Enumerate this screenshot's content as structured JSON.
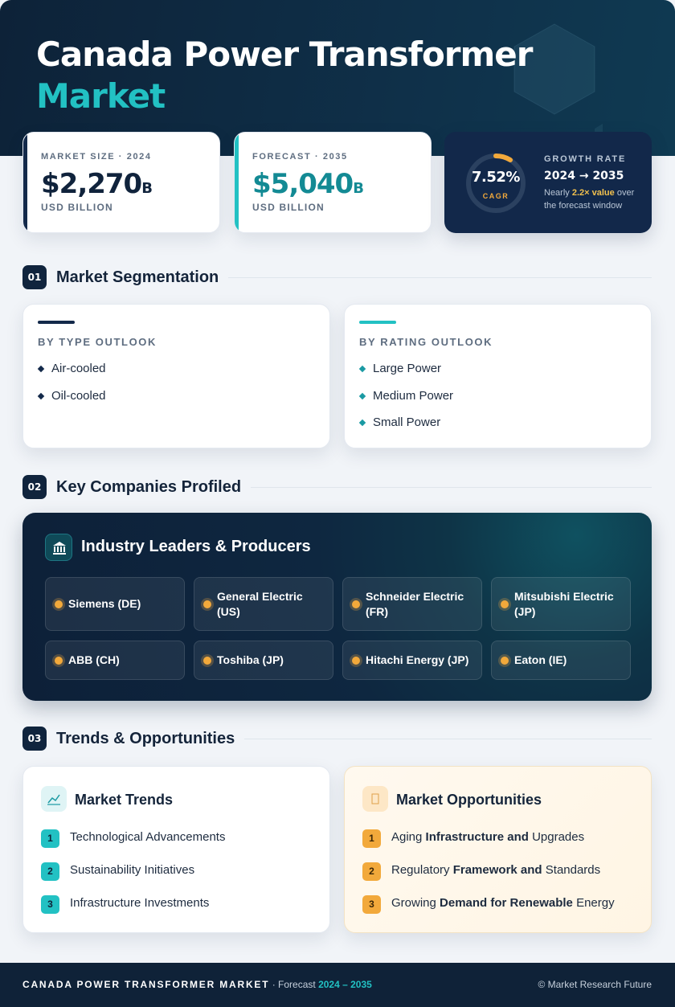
{
  "header": {
    "title": "Canada Power Transformer",
    "title_highlight": "Market"
  },
  "stats": [
    {
      "label": "MARKET SIZE · 2024",
      "value": "$2,270",
      "unit": "B",
      "caption": "USD BILLION"
    },
    {
      "label": "FORECAST · 2035",
      "value": "$5,040",
      "unit": "B",
      "caption": "USD BILLION"
    }
  ],
  "growth": {
    "cagr": "7.52%",
    "cagr_label": "CAGR",
    "label": "GROWTH RATE",
    "period": "2024 → 2035",
    "note": [
      "Nearly",
      "2.2× value",
      "over the forecast window"
    ]
  },
  "sections": [
    {
      "number": "01",
      "title": "Market Segmentation"
    },
    {
      "number": "02",
      "title": "Key Companies Profiled"
    },
    {
      "number": "03",
      "title": "Trends & Opportunities"
    }
  ],
  "segmentation": [
    {
      "title": "BY TYPE OUTLOOK",
      "items": [
        "Air-cooled",
        "Oil-cooled"
      ]
    },
    {
      "title": "BY RATING OUTLOOK",
      "items": [
        "Large Power",
        "Medium Power",
        "Small Power"
      ]
    }
  ],
  "companies": {
    "title": "Industry Leaders & Producers",
    "items": [
      "Siemens (DE)",
      "General Electric (US)",
      "Schneider Electric (FR)",
      "Mitsubishi Electric (JP)",
      "ABB (CH)",
      "Toshiba (JP)",
      "Hitachi Energy (JP)",
      "Eaton (IE)"
    ]
  },
  "trends": {
    "title": "Market Trends",
    "items": [
      {
        "number": 1,
        "parts": [
          "Technological Advancements"
        ]
      },
      {
        "number": 2,
        "parts": [
          "Sustainability Initiatives"
        ]
      },
      {
        "number": 3,
        "parts": [
          "Infrastructure Investments"
        ]
      }
    ]
  },
  "opportunities": {
    "title": "Market Opportunities",
    "items": [
      {
        "number": 1,
        "parts": [
          "Aging",
          "Infrastructure and",
          "Upgrades"
        ]
      },
      {
        "number": 2,
        "parts": [
          "Regulatory",
          "Framework and",
          "Standards"
        ]
      },
      {
        "number": 3,
        "parts": [
          "Growing",
          "Demand for Renewable",
          "Energy"
        ]
      }
    ]
  },
  "footer": {
    "title": "CANADA POWER TRANSFORMER MARKET",
    "separator": "·",
    "forecast_label": "Forecast",
    "period": "2024 – 2035",
    "copyright": "© Market Research Future"
  }
}
